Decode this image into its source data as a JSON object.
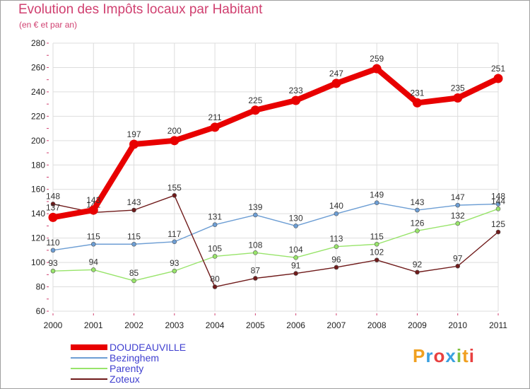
{
  "chart_data": {
    "type": "line",
    "title": "Evolution des Impôts locaux par Habitant",
    "subtitle": "(en € et par an)",
    "categories": [
      "2000",
      "2001",
      "2002",
      "2003",
      "2004",
      "2005",
      "2006",
      "2007",
      "2008",
      "2009",
      "2010",
      "2011"
    ],
    "ylim": [
      60,
      280
    ],
    "yticks": [
      60,
      80,
      100,
      120,
      140,
      160,
      180,
      200,
      220,
      240,
      260,
      280
    ],
    "grid": true,
    "legend_position": "bottom-left",
    "series": [
      {
        "name": "DOUDEAUVILLE",
        "color": "#e80000",
        "values": [
          137,
          143,
          197,
          200,
          211,
          225,
          233,
          247,
          259,
          231,
          235,
          251
        ]
      },
      {
        "name": "Bezinghem",
        "color": "#6d9ed4",
        "values": [
          110,
          115,
          115,
          117,
          131,
          139,
          130,
          140,
          149,
          143,
          147,
          148
        ]
      },
      {
        "name": "Parenty",
        "color": "#98e46a",
        "values": [
          93,
          94,
          85,
          93,
          105,
          108,
          104,
          113,
          115,
          126,
          132,
          144
        ]
      },
      {
        "name": "Zoteux",
        "color": "#6f1a1a",
        "values": [
          148,
          141,
          143,
          155,
          80,
          87,
          91,
          96,
          102,
          92,
          97,
          125
        ]
      }
    ]
  },
  "brand": {
    "text": "Proxiti"
  }
}
